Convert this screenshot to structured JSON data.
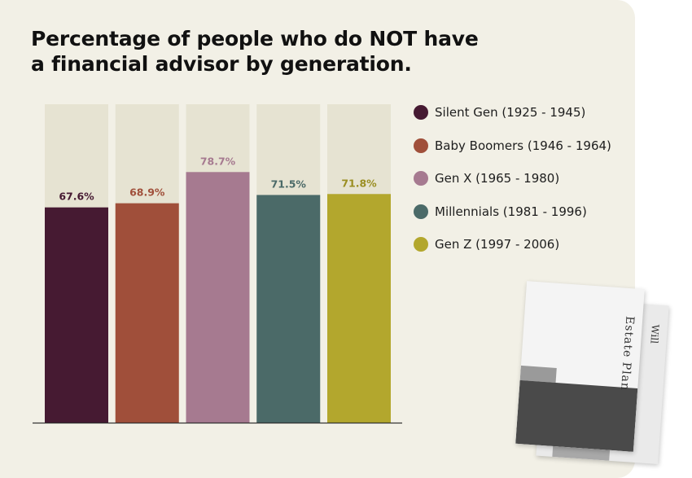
{
  "title_lines": [
    "Percentage of people who do NOT have",
    "a financial advisor by generation."
  ],
  "chart_data": {
    "type": "bar",
    "title": "Percentage of people who do NOT have a financial advisor by generation.",
    "categories": [
      "Silent Gen (1925 - 1945)",
      "Baby Boomers (1946 - 1964)",
      "Gen X (1965 - 1980)",
      "Millennials (1981 - 1996)",
      "Gen Z (1997 - 2006)"
    ],
    "values": [
      67.6,
      68.9,
      78.7,
      71.5,
      71.8
    ],
    "value_labels": [
      "67.6%",
      "68.9%",
      "78.7%",
      "71.5%",
      "71.8%"
    ],
    "colors": [
      "#461a32",
      "#a04f3a",
      "#a67a90",
      "#4b6a68",
      "#b3a72d"
    ],
    "label_colors": [
      "#461a32",
      "#a04f3a",
      "#a67a90",
      "#4b6a68",
      "#9a8e22"
    ],
    "background_bar_color": "#e6e3d2",
    "ylim": [
      0,
      100
    ],
    "xlabel": "",
    "ylabel": "",
    "legend_position": "right",
    "grid": false
  },
  "decor": {
    "folder_front_label": "Estate Plan",
    "folder_back_label": "Will"
  }
}
